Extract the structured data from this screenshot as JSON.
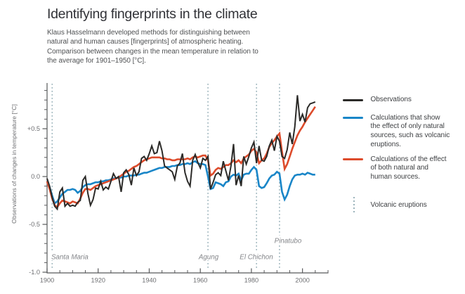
{
  "header": {
    "title": "Identifying fingerprints in the climate",
    "subtitle_lines": [
      "Klaus Hasselmann developed methods for distinguishing between",
      "natural and human causes [fingerprints] of atmospheric heating.",
      "Comparison between changes in the mean temperature in relation to",
      "the average for 1901–1950 [°C]."
    ]
  },
  "legend": {
    "items": [
      {
        "swatch": "line",
        "color": "#2b2a28",
        "lines": [
          "Observations"
        ]
      },
      {
        "swatch": "line",
        "color": "#1a86c8",
        "lines": [
          "Calculations that show",
          "the effect of only natural",
          "sources, such as volcanic",
          "eruptions."
        ]
      },
      {
        "swatch": "line",
        "color": "#dd4b2b",
        "lines": [
          "Calculations of the effect",
          "of both natural and",
          "human sources."
        ]
      },
      {
        "swatch": "dotted",
        "color": "#9bb3bb",
        "lines": [
          "Volcanic eruptions"
        ]
      }
    ]
  },
  "chart_data": {
    "type": "line",
    "title": "Identifying fingerprints in the climate",
    "xlabel": "",
    "ylabel": "Observations of changes in temperature [°C]",
    "x_range": [
      1900,
      2010
    ],
    "ylim": [
      -1.0,
      1.0
    ],
    "x_ticks": [
      1900,
      1920,
      1940,
      1960,
      1980,
      2000
    ],
    "x_minor_tick_step_years": 5,
    "y_ticks": [
      0.5,
      0.0,
      -0.5,
      -1.0
    ],
    "y_tick_labels": [
      "+0.5",
      "0.0",
      "-0.5",
      "-1.0"
    ],
    "y_minor_tick_step": 0.1,
    "grid": false,
    "legend_position": "right",
    "year_start": 1900,
    "year_end": 2005,
    "series": [
      {
        "name": "Observations",
        "color": "#2b2a28",
        "width": 2.0,
        "values": [
          -0.02,
          -0.1,
          -0.22,
          -0.31,
          -0.34,
          -0.16,
          -0.12,
          -0.31,
          -0.28,
          -0.31,
          -0.3,
          -0.31,
          -0.27,
          -0.25,
          -0.04,
          0.0,
          -0.18,
          -0.3,
          -0.24,
          -0.12,
          -0.13,
          -0.05,
          -0.14,
          -0.11,
          -0.13,
          -0.05,
          0.03,
          -0.02,
          0.0,
          -0.16,
          0.04,
          0.07,
          0.02,
          -0.09,
          0.09,
          0.01,
          0.05,
          0.19,
          0.21,
          0.17,
          0.24,
          0.32,
          0.24,
          0.25,
          0.37,
          0.27,
          0.11,
          0.09,
          0.07,
          0.05,
          -0.03,
          0.11,
          0.14,
          0.24,
          0.04,
          -0.05,
          -0.1,
          0.17,
          0.23,
          0.15,
          0.09,
          0.19,
          0.17,
          0.21,
          -0.13,
          -0.06,
          0.02,
          0.04,
          0.01,
          0.16,
          0.06,
          -0.04,
          0.11,
          0.34,
          -0.09,
          0.01,
          -0.1,
          0.21,
          0.13,
          0.21,
          0.3,
          0.36,
          0.14,
          0.32,
          0.17,
          0.16,
          0.21,
          0.32,
          0.38,
          0.27,
          0.42,
          0.37,
          0.21,
          0.19,
          0.28,
          0.46,
          0.34,
          0.52,
          0.85,
          0.58,
          0.65,
          0.57,
          0.72,
          0.76,
          0.77,
          0.78
        ]
      },
      {
        "name": "Calculations that show the effect of only natural sources, such as volcanic eruptions.",
        "color": "#1a86c8",
        "width": 2.6,
        "values": [
          -0.05,
          -0.11,
          -0.2,
          -0.28,
          -0.26,
          -0.22,
          -0.18,
          -0.16,
          -0.14,
          -0.14,
          -0.13,
          -0.14,
          -0.17,
          -0.15,
          -0.11,
          -0.09,
          -0.08,
          -0.08,
          -0.07,
          -0.06,
          -0.06,
          -0.05,
          -0.05,
          -0.04,
          -0.04,
          -0.03,
          -0.02,
          -0.02,
          -0.01,
          -0.01,
          0.0,
          0.0,
          0.01,
          0.01,
          0.01,
          0.02,
          0.02,
          0.03,
          0.04,
          0.04,
          0.05,
          0.06,
          0.07,
          0.08,
          0.09,
          0.09,
          0.1,
          0.1,
          0.1,
          0.11,
          0.11,
          0.12,
          0.12,
          0.13,
          0.13,
          0.14,
          0.13,
          0.15,
          0.16,
          0.14,
          0.13,
          0.13,
          0.12,
          0.0,
          -0.13,
          -0.12,
          -0.06,
          -0.07,
          -0.08,
          -0.1,
          -0.06,
          -0.05,
          0.0,
          0.02,
          0.01,
          0.03,
          -0.04,
          0.02,
          0.03,
          0.03,
          0.07,
          0.1,
          0.07,
          -0.1,
          -0.12,
          -0.11,
          -0.07,
          -0.02,
          0.01,
          0.02,
          0.05,
          0.03,
          -0.16,
          -0.24,
          -0.19,
          -0.1,
          -0.03,
          0.01,
          0.02,
          0.02,
          0.03,
          0.02,
          0.04,
          0.03,
          0.02,
          0.02
        ]
      },
      {
        "name": "Calculations of the effect of both natural and human sources.",
        "color": "#dd4b2b",
        "width": 2.6,
        "values": [
          -0.05,
          -0.13,
          -0.23,
          -0.3,
          -0.32,
          -0.28,
          -0.25,
          -0.26,
          -0.27,
          -0.28,
          -0.26,
          -0.27,
          -0.28,
          -0.23,
          -0.17,
          -0.13,
          -0.13,
          -0.14,
          -0.12,
          -0.1,
          -0.09,
          -0.08,
          -0.07,
          -0.06,
          -0.05,
          -0.04,
          -0.03,
          -0.02,
          -0.01,
          0.01,
          0.03,
          0.05,
          0.06,
          0.08,
          0.1,
          0.11,
          0.13,
          0.15,
          0.17,
          0.18,
          0.19,
          0.2,
          0.2,
          0.2,
          0.2,
          0.19,
          0.19,
          0.18,
          0.18,
          0.17,
          0.17,
          0.18,
          0.18,
          0.18,
          0.18,
          0.19,
          0.18,
          0.2,
          0.21,
          0.2,
          0.21,
          0.22,
          0.22,
          0.17,
          0.01,
          0.03,
          0.07,
          0.09,
          0.08,
          0.1,
          0.12,
          0.12,
          0.14,
          0.17,
          0.15,
          0.17,
          0.14,
          0.19,
          0.21,
          0.23,
          0.27,
          0.29,
          0.25,
          0.14,
          0.17,
          0.19,
          0.24,
          0.31,
          0.35,
          0.38,
          0.42,
          0.45,
          0.26,
          0.08,
          0.13,
          0.21,
          0.29,
          0.36,
          0.43,
          0.48,
          0.52,
          0.57,
          0.61,
          0.65,
          0.69,
          0.73
        ]
      }
    ],
    "volcanic_eruptions": [
      {
        "name": "Santa Maria",
        "year": 1902
      },
      {
        "name": "Agung",
        "year": 1963
      },
      {
        "name": "El Chichon",
        "year": 1982
      },
      {
        "name": "Pinatubo",
        "year": 1991
      }
    ],
    "volcano_line_color": "#9bb3bb",
    "axis_color": "#58595b",
    "tick_label_color": "#6d6e71",
    "volcano_label_color": "#84868a"
  }
}
